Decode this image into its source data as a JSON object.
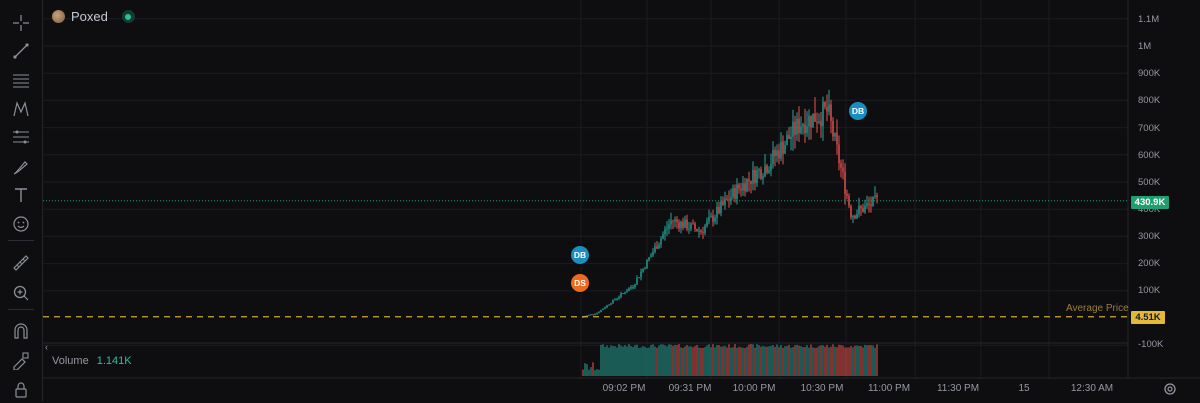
{
  "symbol": {
    "name": "Poxed"
  },
  "price_axis": {
    "labels": [
      "1.1M",
      "1M",
      "900K",
      "800K",
      "700K",
      "600K",
      "500K",
      "400K",
      "300K",
      "200K",
      "100K",
      "-100K"
    ]
  },
  "time_axis": {
    "labels": [
      "09:02 PM",
      "09:31 PM",
      "10:00 PM",
      "10:30 PM",
      "11:00 PM",
      "11:30 PM",
      "15",
      "12:30 AM"
    ]
  },
  "current_price": {
    "label": "430.9K",
    "color": "#1f9e6f"
  },
  "average_price": {
    "title": "Average Price",
    "label": "4.51K",
    "color": "#e2b93b"
  },
  "volume": {
    "title": "Volume",
    "value": "1.141K"
  },
  "markers": [
    {
      "text": "DB",
      "type": "db"
    },
    {
      "text": "DS",
      "type": "ds"
    },
    {
      "text": "DB",
      "type": "db"
    }
  ],
  "colors": {
    "up": "#26a69a",
    "down": "#ef5350",
    "background": "#0e0e11"
  },
  "toolbar": {
    "icons": [
      "crosshair-icon",
      "trend-line-icon",
      "horizontal-lines-icon",
      "pattern-icon",
      "fib-icon",
      "brush-icon",
      "text-icon",
      "emoji-icon",
      "ruler-icon",
      "zoom-in-icon",
      "magnet-icon",
      "lock-drawing-icon",
      "lock-icon"
    ]
  },
  "chart_data": {
    "type": "candlestick",
    "price_range": [
      -100000,
      1100000
    ],
    "x_labels": [
      "09:02 PM",
      "09:31 PM",
      "10:00 PM",
      "10:30 PM",
      "11:00 PM",
      "11:30 PM",
      "15",
      "12:30 AM"
    ],
    "trend": [
      {
        "t": "09:00 PM",
        "close": 4510
      },
      {
        "t": "09:02 PM",
        "close": 20000
      },
      {
        "t": "09:15 PM",
        "close": 120000
      },
      {
        "t": "09:31 PM",
        "close": 360000
      },
      {
        "t": "09:45 PM",
        "close": 320000
      },
      {
        "t": "10:00 PM",
        "close": 470000
      },
      {
        "t": "10:15 PM",
        "close": 570000
      },
      {
        "t": "10:30 PM",
        "close": 720000
      },
      {
        "t": "10:40 PM",
        "close": 760000
      },
      {
        "t": "10:48 PM",
        "close": 380000
      },
      {
        "t": "10:52 PM",
        "close": 430900
      }
    ],
    "current_price": 430900,
    "average_price": 4510,
    "volume_total": "1.141K"
  }
}
